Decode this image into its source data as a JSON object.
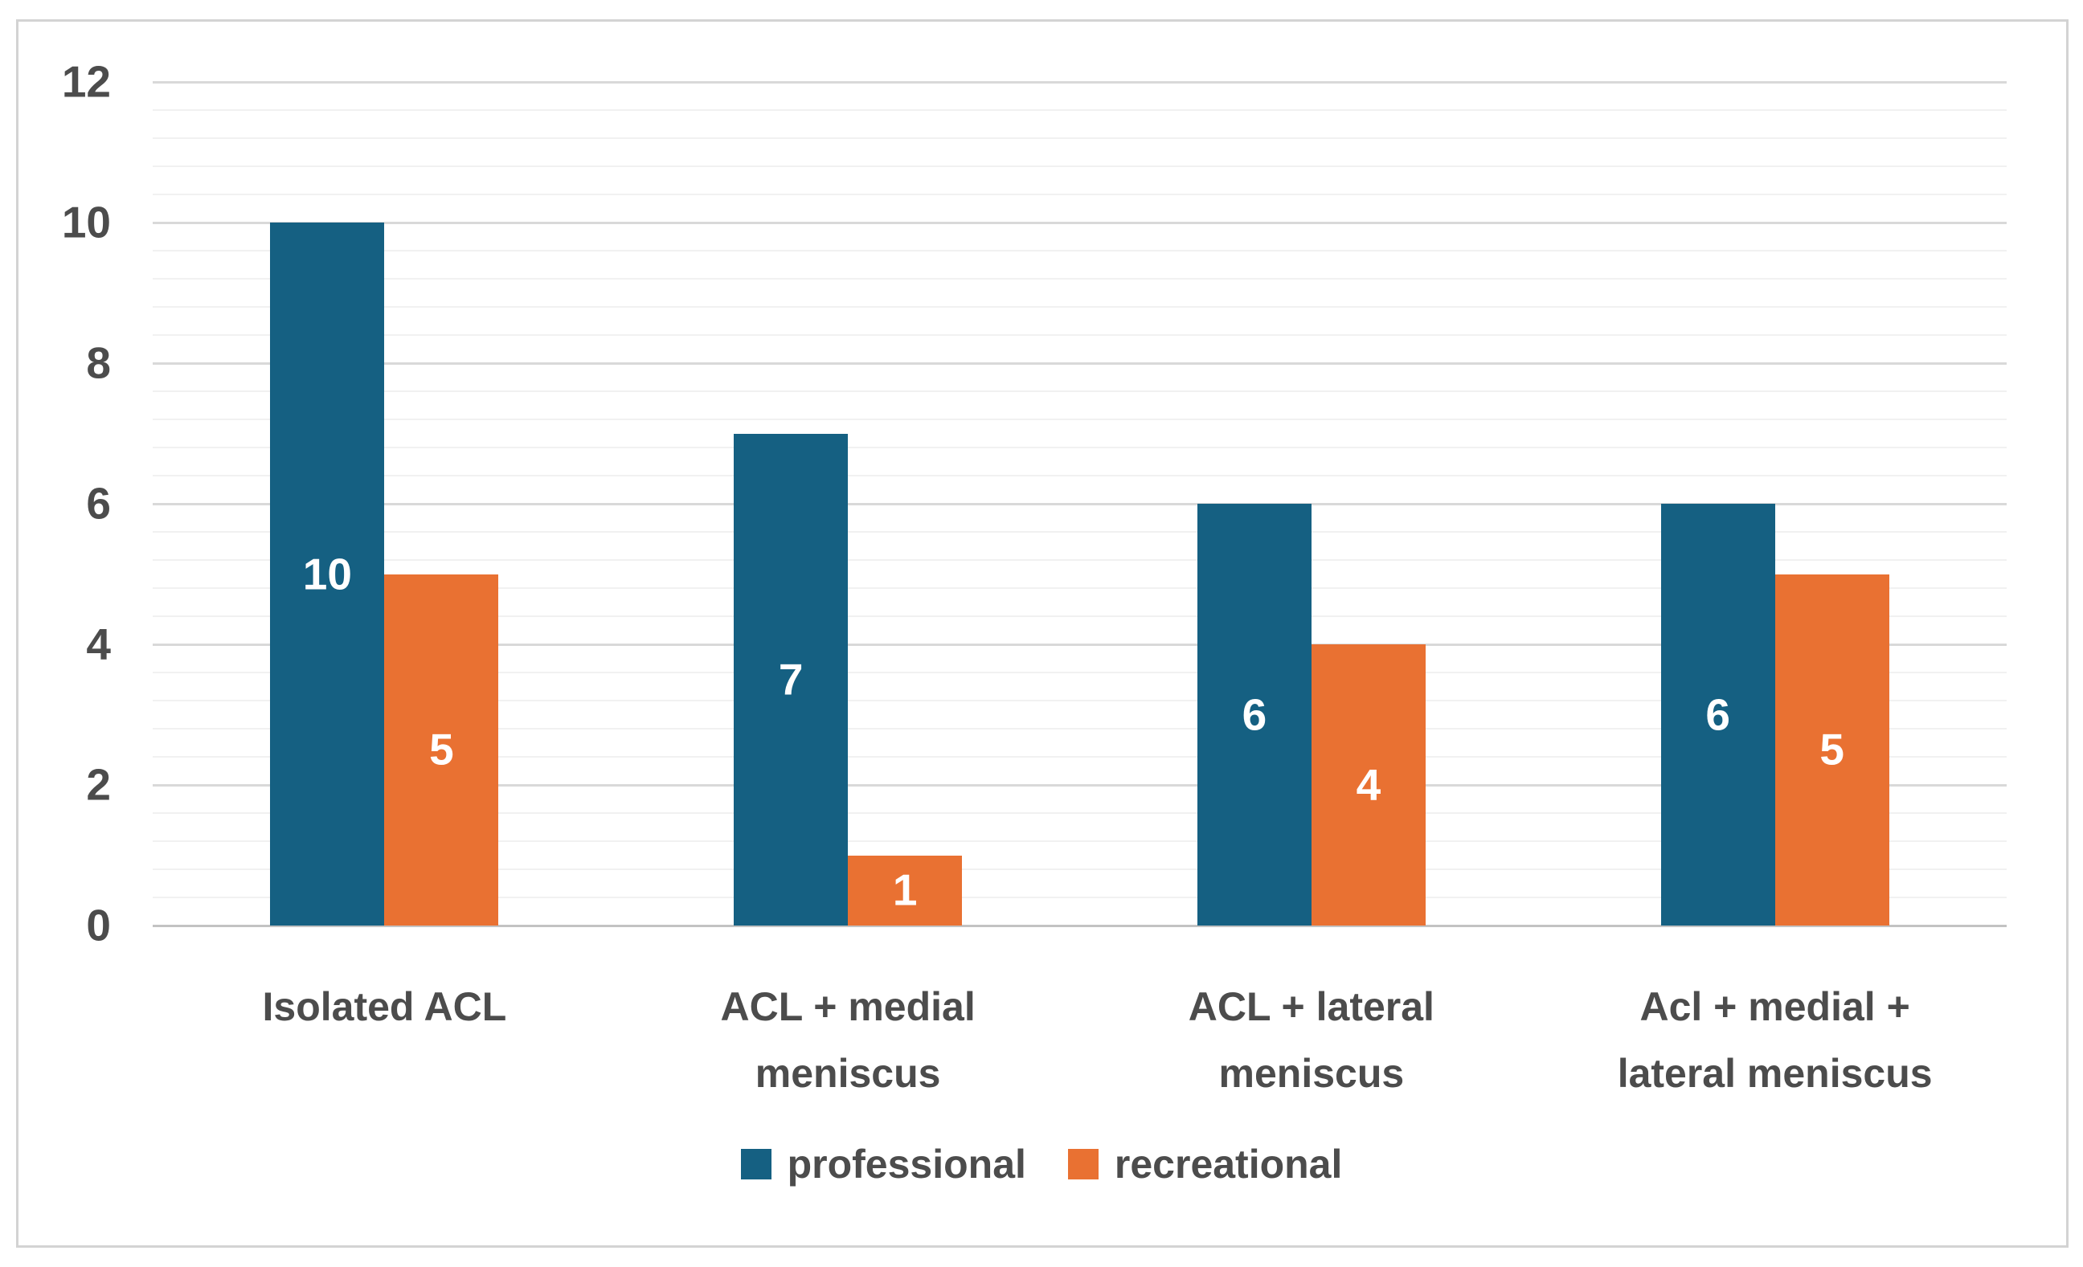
{
  "chart_data": {
    "type": "bar",
    "title": "",
    "xlabel": "",
    "ylabel": "",
    "categories": [
      "Isolated ACL",
      "ACL + medial meniscus",
      "ACL + lateral meniscus",
      "Acl + medial + lateral meniscus"
    ],
    "series": [
      {
        "name": "professional",
        "color": "#156082",
        "values": [
          10,
          7,
          6,
          6
        ]
      },
      {
        "name": "recreational",
        "color": "#E97132",
        "values": [
          5,
          1,
          4,
          5
        ]
      }
    ],
    "data_labels": {
      "position": "inside-center",
      "color": "#FFFFFF",
      "values_professional": [
        "10",
        "7",
        "6",
        "6"
      ],
      "values_recreational": [
        "5",
        "1",
        "4",
        "5"
      ]
    },
    "y_axis": {
      "min": 0,
      "max": 12,
      "major_unit": 2,
      "minor_unit": 0.4,
      "ticks": [
        0,
        2,
        4,
        6,
        8,
        10,
        12
      ]
    },
    "grid": {
      "major": true,
      "minor": true,
      "vertical": false
    },
    "legend": {
      "position": "bottom",
      "entries": [
        "professional",
        "recreational"
      ]
    }
  },
  "colors": {
    "series_professional": "#156082",
    "series_recreational": "#E97132",
    "axis_text": "#4c4c4c",
    "major_gridline": "#d9d9d9",
    "minor_gridline": "#f1f1f1",
    "zero_line": "#c3c3c3",
    "frame_border": "#d3d3d3",
    "background": "#ffffff"
  }
}
